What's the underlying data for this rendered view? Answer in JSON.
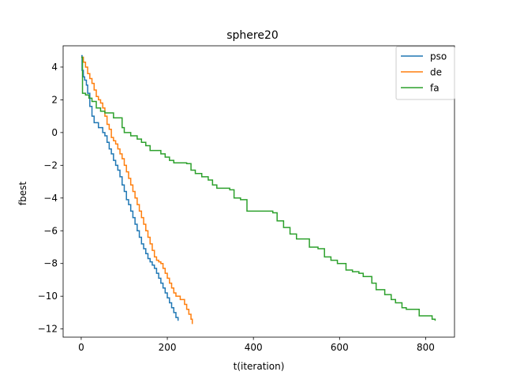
{
  "chart_data": {
    "type": "line",
    "title": "sphere20",
    "xlabel": "t(iteration)",
    "ylabel": "fbest",
    "xlim": [
      -42,
      867
    ],
    "ylim": [
      -12.5,
      5.3
    ],
    "xticks": [
      0,
      200,
      400,
      600,
      800
    ],
    "yticks": [
      -12,
      -10,
      -8,
      -6,
      -4,
      -2,
      0,
      2,
      4
    ],
    "grid": false,
    "legend_position": "top-right",
    "series": [
      {
        "name": "pso",
        "color": "#1f77b4",
        "step": true,
        "points": [
          [
            0,
            4.7
          ],
          [
            2,
            3.8
          ],
          [
            5,
            3.4
          ],
          [
            8,
            3.2
          ],
          [
            12,
            2.9
          ],
          [
            15,
            2.4
          ],
          [
            20,
            1.6
          ],
          [
            25,
            1.0
          ],
          [
            30,
            0.6
          ],
          [
            40,
            0.3
          ],
          [
            50,
            0.0
          ],
          [
            55,
            -0.2
          ],
          [
            60,
            -0.6
          ],
          [
            65,
            -1.0
          ],
          [
            70,
            -1.3
          ],
          [
            75,
            -1.7
          ],
          [
            80,
            -2.0
          ],
          [
            85,
            -2.3
          ],
          [
            90,
            -2.7
          ],
          [
            95,
            -3.2
          ],
          [
            100,
            -3.6
          ],
          [
            105,
            -4.1
          ],
          [
            110,
            -4.4
          ],
          [
            115,
            -4.8
          ],
          [
            120,
            -5.2
          ],
          [
            125,
            -5.6
          ],
          [
            130,
            -6.0
          ],
          [
            135,
            -6.4
          ],
          [
            140,
            -6.8
          ],
          [
            145,
            -7.1
          ],
          [
            150,
            -7.4
          ],
          [
            155,
            -7.7
          ],
          [
            160,
            -7.9
          ],
          [
            165,
            -8.1
          ],
          [
            170,
            -8.3
          ],
          [
            175,
            -8.6
          ],
          [
            180,
            -8.9
          ],
          [
            185,
            -9.2
          ],
          [
            190,
            -9.5
          ],
          [
            195,
            -9.8
          ],
          [
            200,
            -10.1
          ],
          [
            205,
            -10.4
          ],
          [
            210,
            -10.7
          ],
          [
            215,
            -11.0
          ],
          [
            220,
            -11.3
          ],
          [
            225,
            -11.5
          ]
        ]
      },
      {
        "name": "de",
        "color": "#ff7f0e",
        "step": true,
        "points": [
          [
            0,
            4.6
          ],
          [
            5,
            4.3
          ],
          [
            10,
            4.0
          ],
          [
            15,
            3.6
          ],
          [
            20,
            3.3
          ],
          [
            25,
            3.0
          ],
          [
            30,
            2.6
          ],
          [
            35,
            2.2
          ],
          [
            40,
            2.0
          ],
          [
            45,
            1.8
          ],
          [
            50,
            1.5
          ],
          [
            55,
            1.0
          ],
          [
            60,
            0.5
          ],
          [
            65,
            0.2
          ],
          [
            70,
            -0.3
          ],
          [
            75,
            -0.5
          ],
          [
            80,
            -0.7
          ],
          [
            85,
            -1.0
          ],
          [
            90,
            -1.3
          ],
          [
            95,
            -1.6
          ],
          [
            100,
            -2.0
          ],
          [
            105,
            -2.4
          ],
          [
            110,
            -2.8
          ],
          [
            115,
            -3.2
          ],
          [
            120,
            -3.6
          ],
          [
            125,
            -4.0
          ],
          [
            130,
            -4.4
          ],
          [
            135,
            -4.8
          ],
          [
            140,
            -5.2
          ],
          [
            145,
            -5.6
          ],
          [
            150,
            -6.0
          ],
          [
            155,
            -6.4
          ],
          [
            160,
            -6.8
          ],
          [
            165,
            -7.2
          ],
          [
            170,
            -7.6
          ],
          [
            175,
            -7.8
          ],
          [
            180,
            -7.9
          ],
          [
            185,
            -8.0
          ],
          [
            190,
            -8.3
          ],
          [
            195,
            -8.6
          ],
          [
            200,
            -8.9
          ],
          [
            205,
            -9.2
          ],
          [
            210,
            -9.5
          ],
          [
            215,
            -9.8
          ],
          [
            220,
            -10.0
          ],
          [
            230,
            -10.2
          ],
          [
            240,
            -10.5
          ],
          [
            245,
            -10.8
          ],
          [
            250,
            -11.1
          ],
          [
            255,
            -11.4
          ],
          [
            258,
            -11.7
          ]
        ]
      },
      {
        "name": "fa",
        "color": "#2ca02c",
        "step": true,
        "points": [
          [
            0,
            4.6
          ],
          [
            3,
            2.4
          ],
          [
            10,
            2.3
          ],
          [
            18,
            2.1
          ],
          [
            25,
            1.9
          ],
          [
            35,
            1.5
          ],
          [
            45,
            1.3
          ],
          [
            55,
            1.2
          ],
          [
            75,
            0.9
          ],
          [
            95,
            0.3
          ],
          [
            100,
            0.0
          ],
          [
            115,
            -0.2
          ],
          [
            130,
            -0.4
          ],
          [
            140,
            -0.6
          ],
          [
            150,
            -0.8
          ],
          [
            160,
            -1.1
          ],
          [
            185,
            -1.3
          ],
          [
            195,
            -1.5
          ],
          [
            205,
            -1.7
          ],
          [
            215,
            -1.85
          ],
          [
            245,
            -1.9
          ],
          [
            255,
            -2.3
          ],
          [
            265,
            -2.5
          ],
          [
            280,
            -2.7
          ],
          [
            295,
            -2.9
          ],
          [
            305,
            -3.2
          ],
          [
            315,
            -3.4
          ],
          [
            345,
            -3.5
          ],
          [
            355,
            -4.0
          ],
          [
            370,
            -4.1
          ],
          [
            385,
            -4.8
          ],
          [
            445,
            -4.9
          ],
          [
            455,
            -5.4
          ],
          [
            470,
            -5.8
          ],
          [
            485,
            -6.2
          ],
          [
            500,
            -6.5
          ],
          [
            530,
            -7.0
          ],
          [
            550,
            -7.1
          ],
          [
            565,
            -7.6
          ],
          [
            580,
            -7.8
          ],
          [
            595,
            -8.0
          ],
          [
            615,
            -8.4
          ],
          [
            630,
            -8.5
          ],
          [
            645,
            -8.6
          ],
          [
            655,
            -8.8
          ],
          [
            675,
            -9.2
          ],
          [
            685,
            -9.6
          ],
          [
            705,
            -9.9
          ],
          [
            720,
            -10.2
          ],
          [
            730,
            -10.4
          ],
          [
            745,
            -10.7
          ],
          [
            755,
            -10.8
          ],
          [
            785,
            -11.2
          ],
          [
            815,
            -11.4
          ],
          [
            822,
            -11.5
          ]
        ]
      }
    ]
  }
}
